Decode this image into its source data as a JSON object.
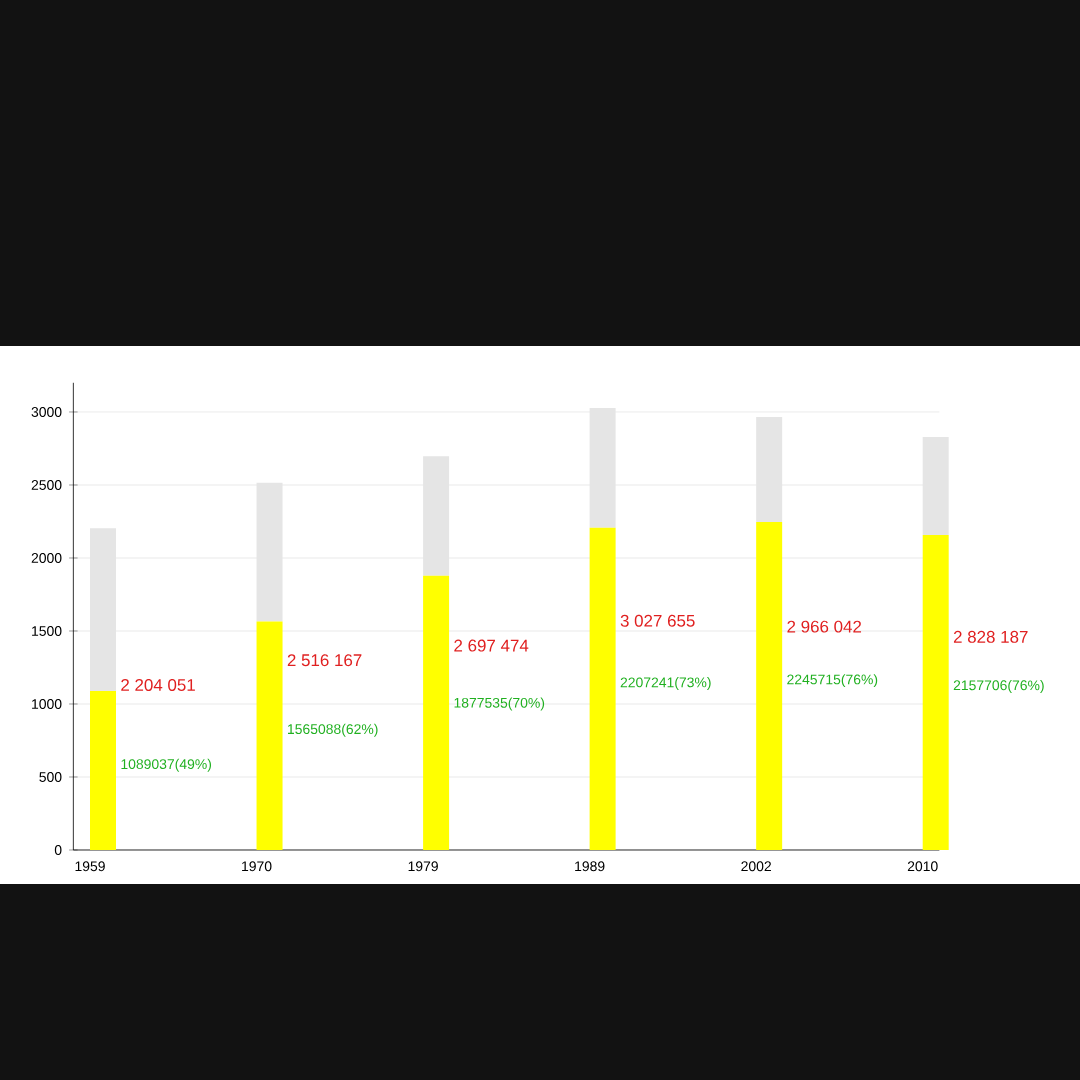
{
  "chart_data": {
    "type": "bar",
    "stacked": true,
    "categories": [
      "1959",
      "1970",
      "1979",
      "1989",
      "2002",
      "2010"
    ],
    "series": [
      {
        "color": "#ffff00",
        "values": [
          1089,
          1565,
          1878,
          2207,
          2246,
          2158
        ]
      },
      {
        "color": "#e5e5e5",
        "values": [
          1115,
          951,
          819,
          821,
          720,
          670
        ]
      }
    ],
    "annotations": [
      {
        "text": "2 204 051",
        "x": "1959",
        "y": 1130
      },
      {
        "text": "2 516 167",
        "x": "1970",
        "y": 1300
      },
      {
        "text": "2 697 474",
        "x": "1979",
        "y": 1400
      },
      {
        "text": "3 027 655",
        "x": "1989",
        "y": 1570
      },
      {
        "text": "2 966 042",
        "x": "2002",
        "y": 1530
      },
      {
        "text": "2 828 187",
        "x": "2010",
        "y": 1460
      },
      {
        "text": "1089037(49%)",
        "x": "1959",
        "y": 580
      },
      {
        "text": "1565088(62%)",
        "x": "1970",
        "y": 820
      },
      {
        "text": "1877535(70%)",
        "x": "1979",
        "y": 1000
      },
      {
        "text": "2207241(73%)",
        "x": "1989",
        "y": 1140
      },
      {
        "text": "2245715(76%)",
        "x": "2002",
        "y": 1160
      },
      {
        "text": "2157706(76%)",
        "x": "2010",
        "y": 1120
      }
    ],
    "ylim": [
      0,
      3200
    ],
    "yticks": [
      0,
      500,
      1000,
      1500,
      2000,
      2500,
      3000
    ],
    "grid": "y"
  }
}
